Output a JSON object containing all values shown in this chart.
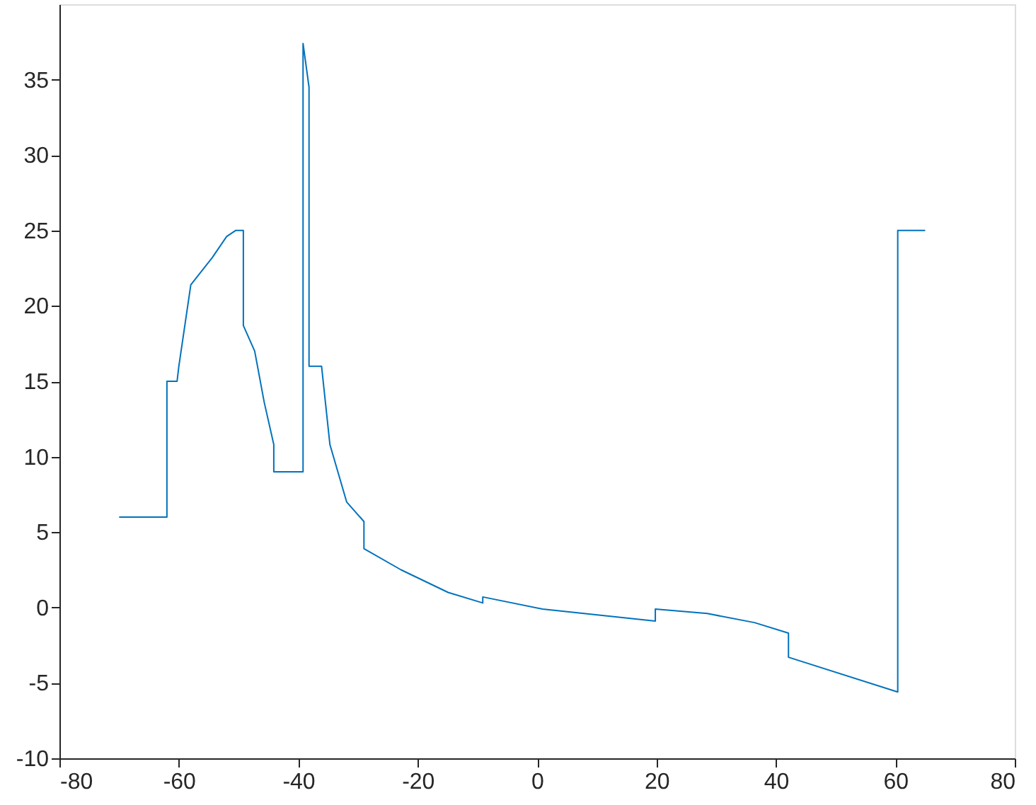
{
  "chart_data": {
    "type": "line",
    "xlim": [
      -80,
      80
    ],
    "ylim": [
      -10,
      40
    ],
    "xticks": [
      -80,
      -60,
      -40,
      -20,
      0,
      20,
      40,
      60,
      80
    ],
    "yticks": [
      -10,
      -5,
      0,
      5,
      10,
      15,
      20,
      25,
      30,
      35
    ],
    "grid": false,
    "marker": "none",
    "line_style": "solid",
    "series": [
      {
        "color": "#0072bd",
        "x": [
          -70,
          -62,
          -62,
          -60.3,
          -60,
          -58,
          -54.4,
          -52,
          -50.5,
          -49.2,
          -49.2,
          -47.3,
          -45.7,
          -44.1,
          -44.1,
          -39.2,
          -39.2,
          -38.2,
          -38.2,
          -36.1,
          -34.7,
          -31.9,
          -29.0,
          -29.0,
          -22.8,
          -14.9,
          -9.1,
          -9.1,
          0.9,
          19.8,
          19.8,
          28.5,
          36.4,
          42.1,
          42.1,
          60.4,
          60.4,
          65
        ],
        "values": [
          6.0,
          6.0,
          15.0,
          15.0,
          16.0,
          21.4,
          23.2,
          24.6,
          25.0,
          25.0,
          18.7,
          17.0,
          13.6,
          10.8,
          9.0,
          9.0,
          37.4,
          34.5,
          16.0,
          16.0,
          10.8,
          7.0,
          5.7,
          3.9,
          2.5,
          1.0,
          0.3,
          0.7,
          -0.1,
          -0.9,
          -0.1,
          -0.4,
          -1.0,
          -1.7,
          -3.3,
          -5.6,
          25.0,
          25.0
        ]
      }
    ]
  }
}
